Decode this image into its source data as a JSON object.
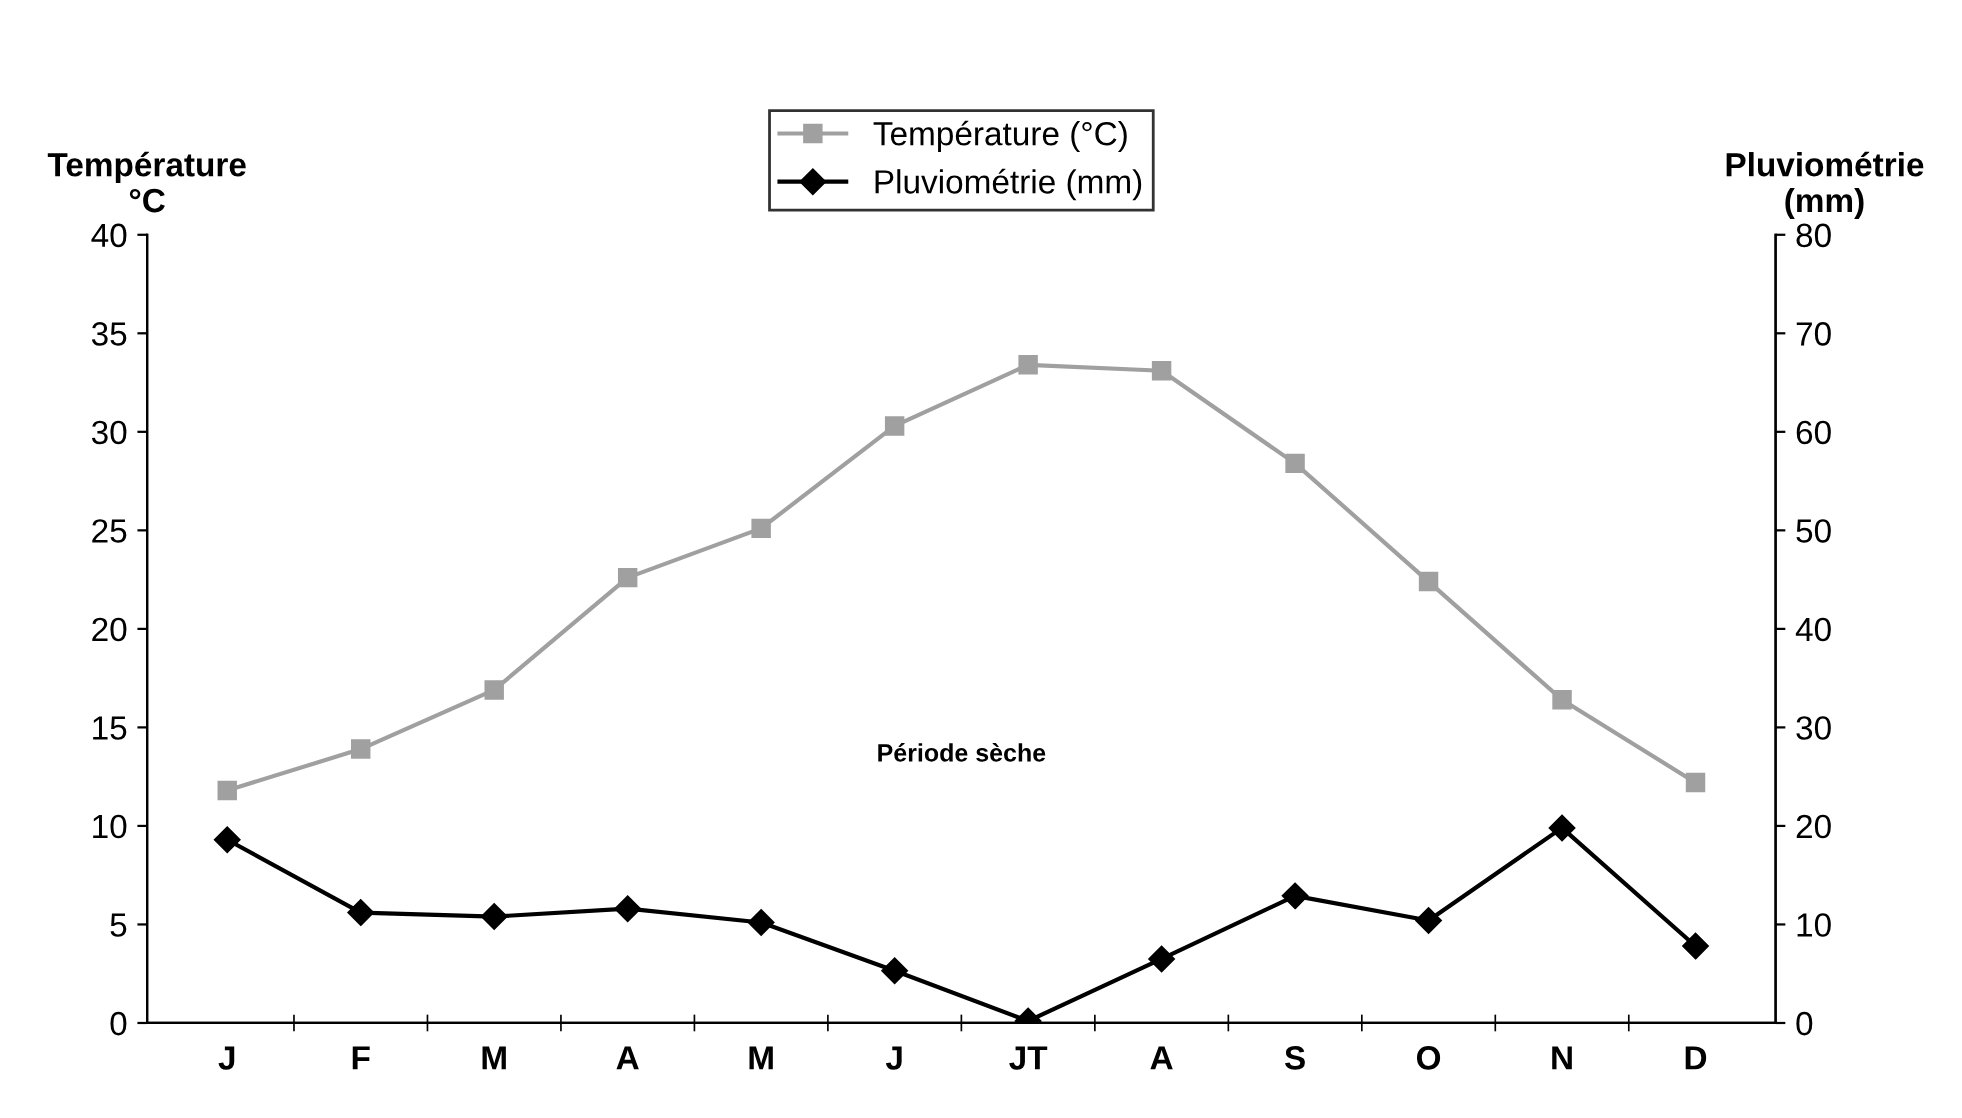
{
  "chart_data": {
    "type": "line",
    "categories": [
      "J",
      "F",
      "M",
      "A",
      "M",
      "J",
      "JT",
      "A",
      "S",
      "O",
      "N",
      "D"
    ],
    "series": [
      {
        "name": "Température (°C)",
        "color": "#a0a0a0",
        "marker": "square",
        "values": [
          11.8,
          13.9,
          16.9,
          22.6,
          25.1,
          30.3,
          33.4,
          33.1,
          28.4,
          22.4,
          16.4,
          12.2
        ]
      },
      {
        "name": "Pluviométrie (mm)",
        "color": "#000000",
        "marker": "diamond",
        "axis": "y2",
        "values": [
          18.6,
          11.2,
          10.8,
          11.6,
          10.2,
          5.3,
          0.2,
          6.5,
          12.9,
          10.4,
          19.8,
          7.8
        ]
      }
    ],
    "ylabel": "Température\n°C",
    "y2label": "Pluviométrie\n(mm)",
    "ylim": [
      0,
      40
    ],
    "yticks": [
      0,
      5,
      10,
      15,
      20,
      25,
      30,
      35,
      40
    ],
    "y2lim": [
      0,
      80
    ],
    "y2ticks": [
      0,
      10,
      20,
      30,
      40,
      50,
      60,
      70,
      80
    ],
    "annotations": [
      "Période sèche"
    ],
    "legend": "top",
    "grid": false,
    "line_style": "solid"
  }
}
